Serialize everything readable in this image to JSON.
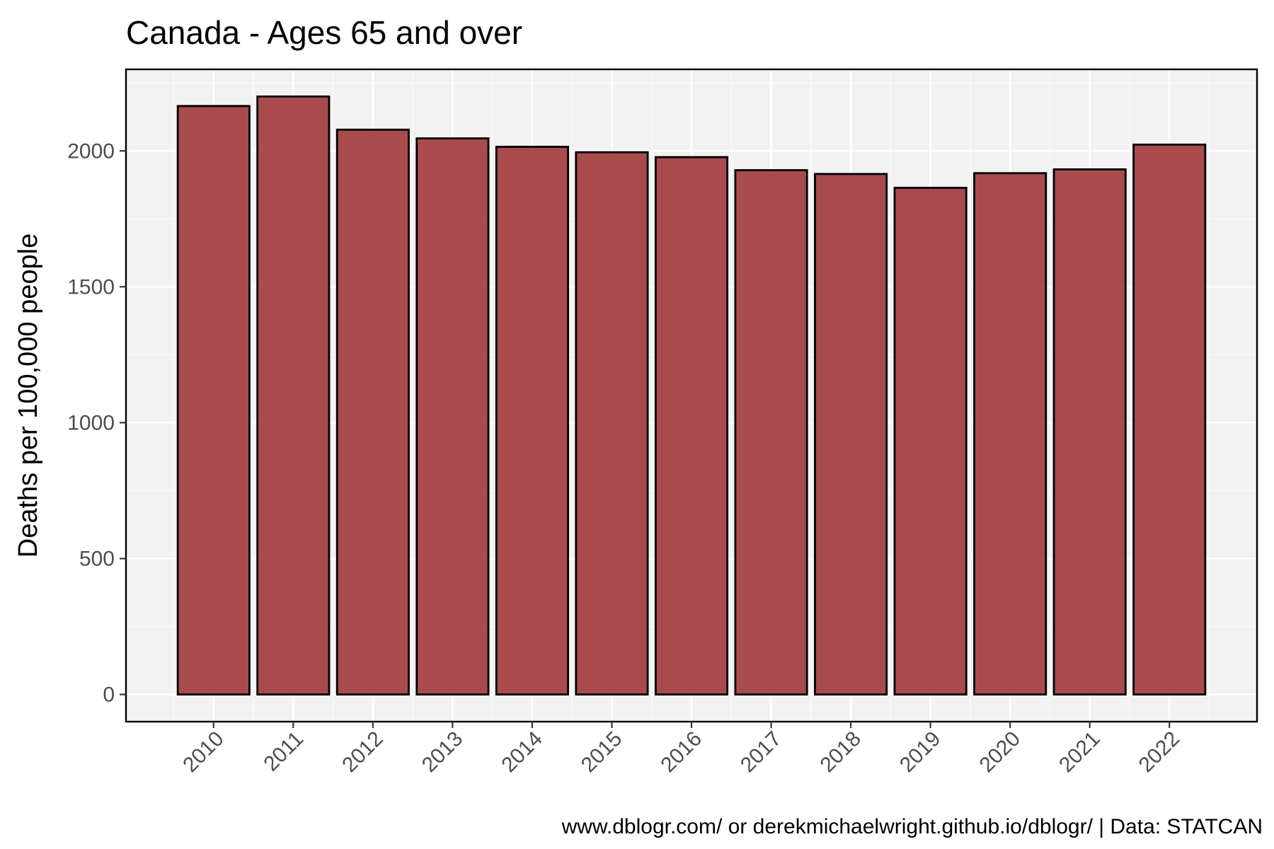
{
  "chart_data": {
    "type": "bar",
    "title": "Canada - Ages 65 and over",
    "xlabel": "",
    "ylabel": "Deaths per 100,000 people",
    "caption": "www.dblogr.com/ or derekmichaelwright.github.io/dblogr/ | Data: STATCAN",
    "categories": [
      "2010",
      "2011",
      "2012",
      "2013",
      "2014",
      "2015",
      "2016",
      "2017",
      "2018",
      "2019",
      "2020",
      "2021",
      "2022"
    ],
    "values": [
      2165,
      2200,
      2078,
      2046,
      2015,
      1995,
      1977,
      1929,
      1915,
      1864,
      1918,
      1932,
      2023
    ],
    "yticks": [
      0,
      500,
      1000,
      1500,
      2000
    ],
    "ylim": [
      -100,
      2300
    ],
    "grid": true,
    "legend": "none",
    "colors": {
      "bar_fill": "#a0383b",
      "bar_stroke": "#000000",
      "panel_background": "#f2f2f2",
      "grid_major": "#ffffff",
      "grid_minor": "#fafafa",
      "axis_text": "#4d4d4d"
    }
  }
}
